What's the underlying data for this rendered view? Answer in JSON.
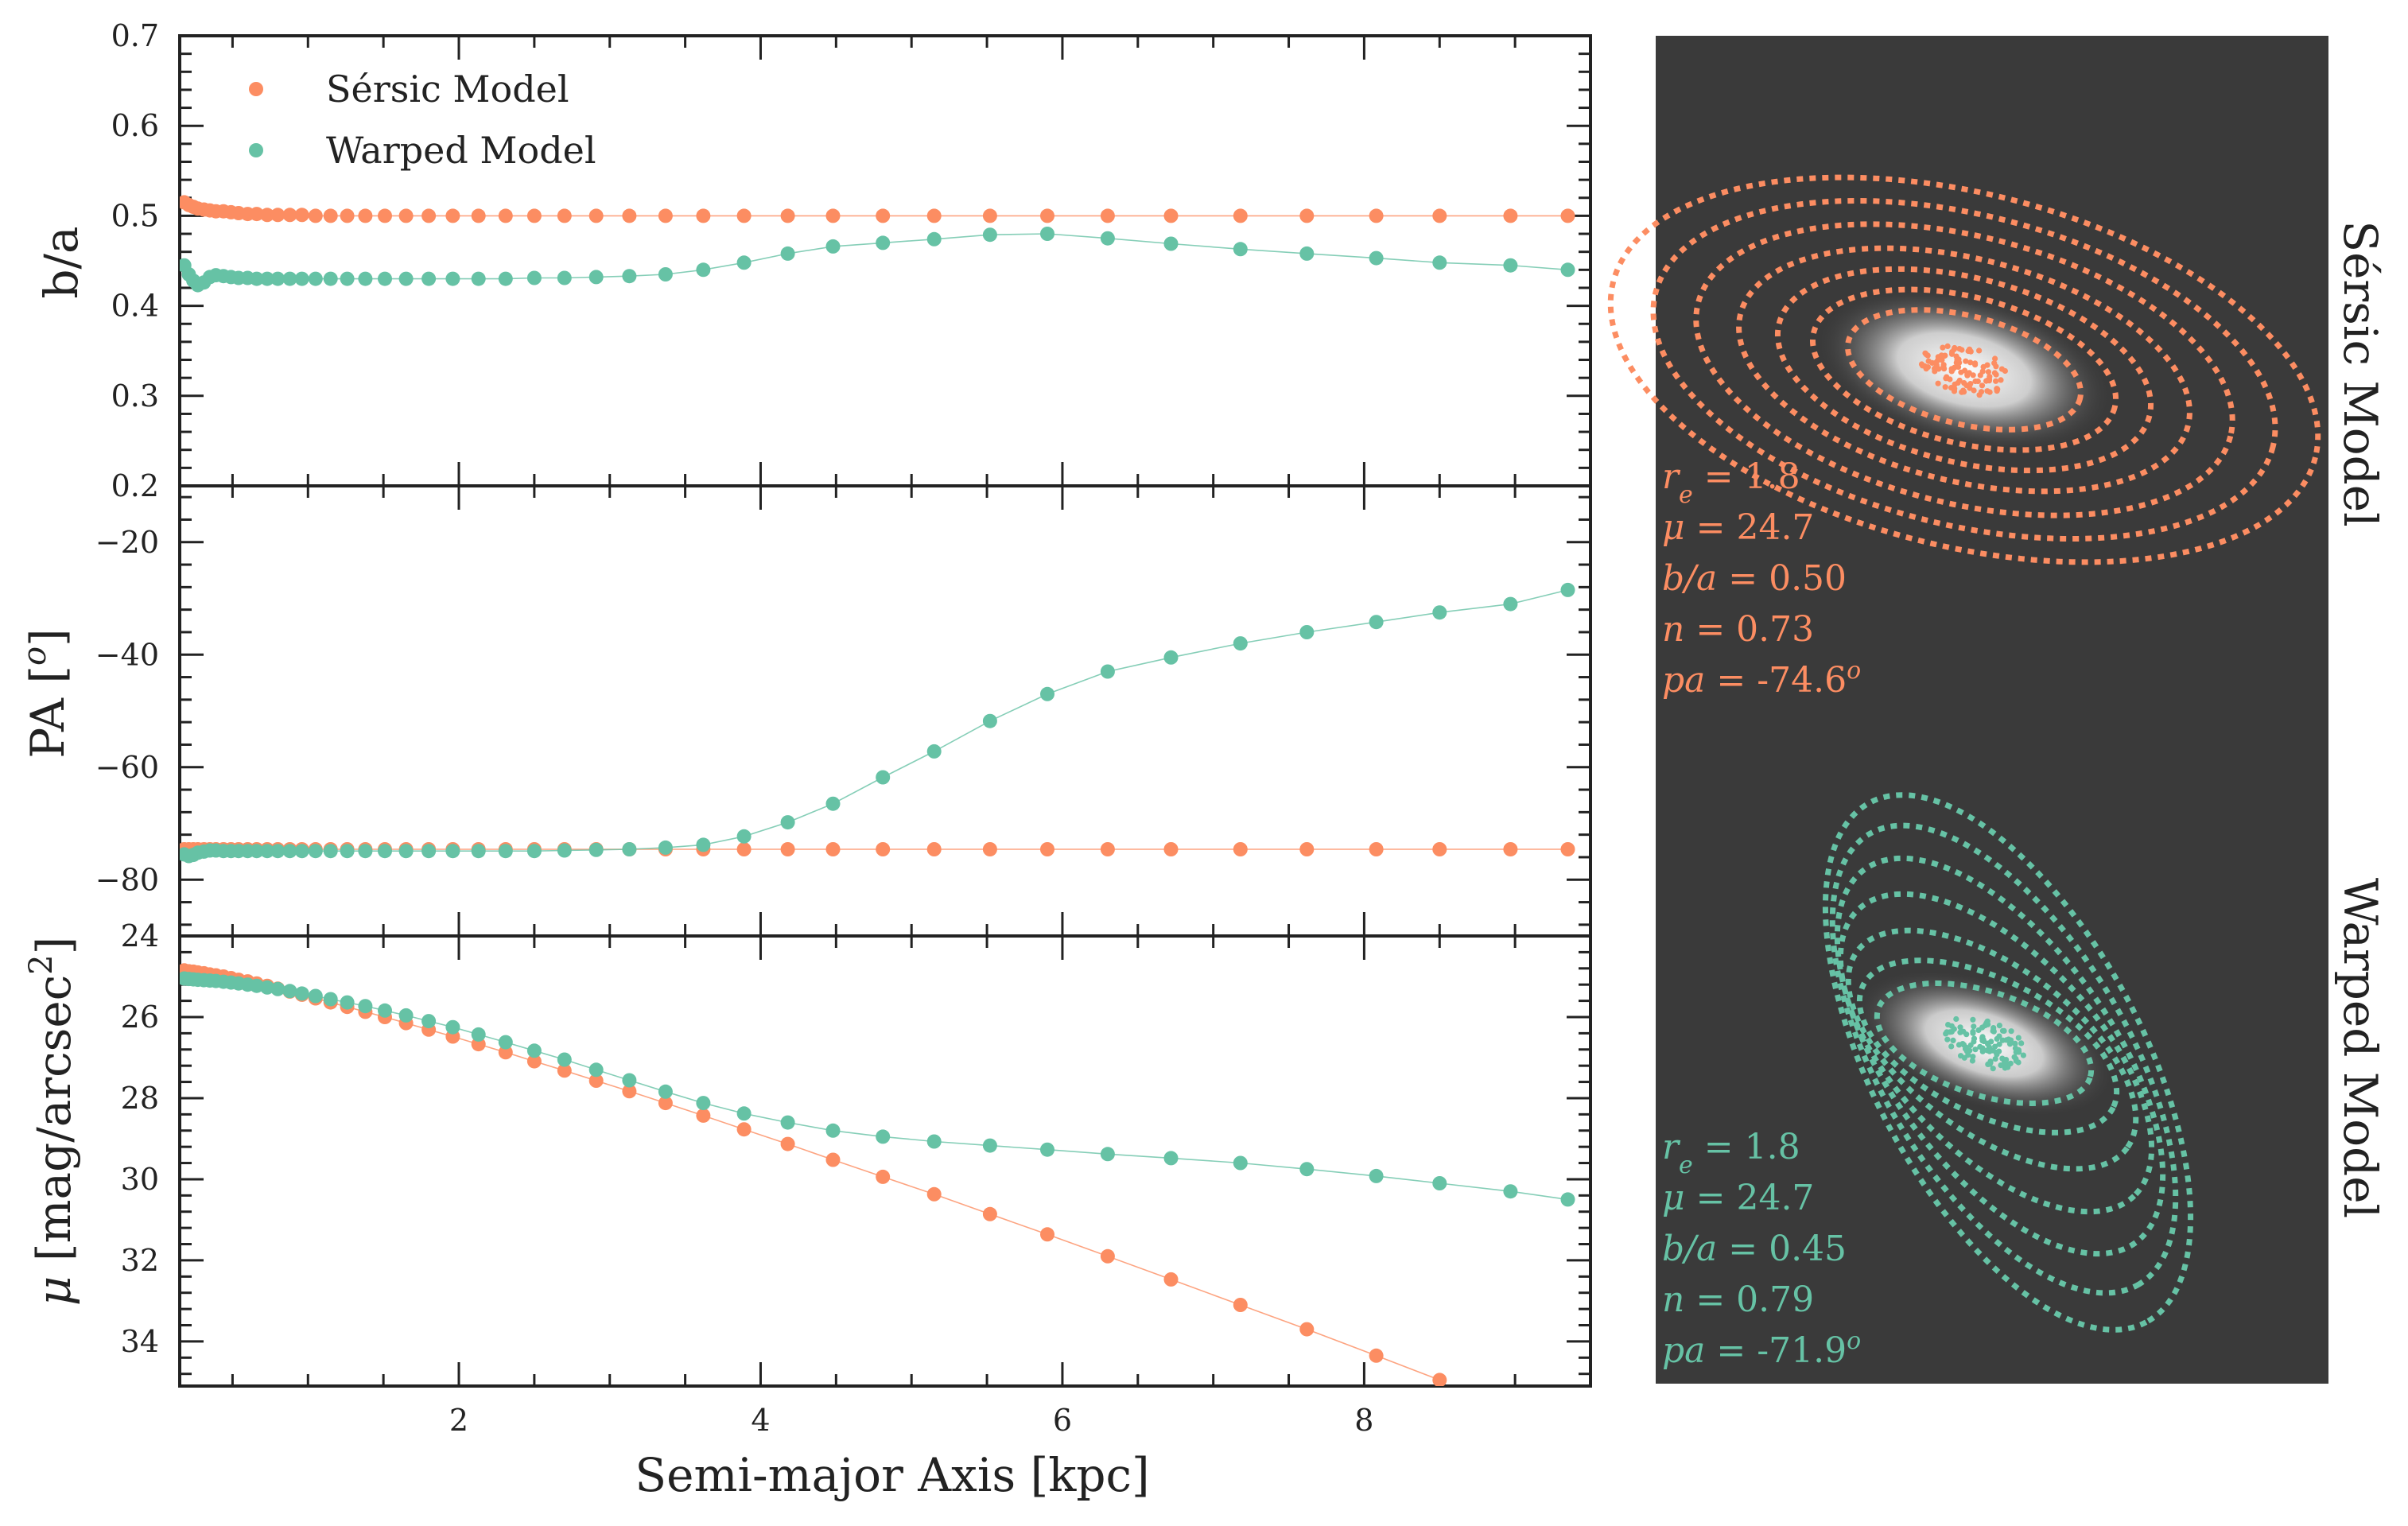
{
  "chart_data": [
    {
      "type": "scatter",
      "panel": "b/a profile",
      "ylabel": "b/a",
      "xlabel": "",
      "xlim": [
        0.15,
        9.5
      ],
      "ylim": [
        0.2,
        0.7
      ],
      "yticks": [
        0.2,
        0.3,
        0.4,
        0.5,
        0.6,
        0.7
      ],
      "ytick_labels": [
        "0.2",
        "0.3",
        "0.4",
        "0.5",
        "0.6",
        "0.7"
      ],
      "legend": {
        "position": "top-left",
        "entries": [
          "Sérsic Model",
          "Warped Model"
        ]
      },
      "series": [
        {
          "name": "Sérsic Model",
          "color": "#fc8d62",
          "x": [
            0.18,
            0.21,
            0.24,
            0.27,
            0.31,
            0.35,
            0.39,
            0.44,
            0.49,
            0.54,
            0.6,
            0.66,
            0.73,
            0.8,
            0.88,
            0.96,
            1.05,
            1.15,
            1.26,
            1.38,
            1.51,
            1.65,
            1.8,
            1.96,
            2.13,
            2.31,
            2.5,
            2.7,
            2.91,
            3.13,
            3.37,
            3.62,
            3.89,
            4.18,
            4.48,
            4.81,
            5.15,
            5.52,
            5.9,
            6.3,
            6.72,
            7.18,
            7.62,
            8.08,
            8.5,
            8.97,
            9.35
          ],
          "y": [
            0.515,
            0.512,
            0.51,
            0.508,
            0.507,
            0.506,
            0.505,
            0.505,
            0.504,
            0.503,
            0.502,
            0.502,
            0.501,
            0.501,
            0.501,
            0.501,
            0.5,
            0.5,
            0.5,
            0.5,
            0.5,
            0.5,
            0.5,
            0.5,
            0.5,
            0.5,
            0.5,
            0.5,
            0.5,
            0.5,
            0.5,
            0.5,
            0.5,
            0.5,
            0.5,
            0.5,
            0.5,
            0.5,
            0.5,
            0.5,
            0.5,
            0.5,
            0.5,
            0.5,
            0.5,
            0.5,
            0.5
          ]
        },
        {
          "name": "Warped Model",
          "color": "#66c2a5",
          "x": [
            0.18,
            0.21,
            0.24,
            0.27,
            0.31,
            0.35,
            0.39,
            0.44,
            0.49,
            0.54,
            0.6,
            0.66,
            0.73,
            0.8,
            0.88,
            0.96,
            1.05,
            1.15,
            1.26,
            1.38,
            1.51,
            1.65,
            1.8,
            1.96,
            2.13,
            2.31,
            2.5,
            2.7,
            2.91,
            3.13,
            3.37,
            3.62,
            3.89,
            4.18,
            4.48,
            4.81,
            5.15,
            5.52,
            5.9,
            6.3,
            6.72,
            7.18,
            7.62,
            8.08,
            8.5,
            8.97,
            9.35
          ],
          "y": [
            0.445,
            0.435,
            0.428,
            0.423,
            0.426,
            0.432,
            0.434,
            0.433,
            0.432,
            0.431,
            0.431,
            0.43,
            0.43,
            0.43,
            0.43,
            0.43,
            0.43,
            0.43,
            0.43,
            0.43,
            0.43,
            0.43,
            0.43,
            0.43,
            0.43,
            0.43,
            0.431,
            0.431,
            0.432,
            0.433,
            0.435,
            0.44,
            0.448,
            0.458,
            0.466,
            0.47,
            0.474,
            0.479,
            0.48,
            0.475,
            0.469,
            0.463,
            0.458,
            0.453,
            0.448,
            0.445,
            0.44
          ]
        }
      ]
    },
    {
      "type": "scatter",
      "panel": "PA profile",
      "ylabel": "PA [°]",
      "xlabel": "",
      "xlim": [
        0.15,
        9.5
      ],
      "ylim": [
        -90,
        -10
      ],
      "yticks": [
        -80,
        -60,
        -40,
        -20
      ],
      "ytick_labels": [
        "−80",
        "−60",
        "−40",
        "−20"
      ],
      "series": [
        {
          "name": "Sérsic Model",
          "color": "#fc8d62",
          "x": [
            0.18,
            0.21,
            0.24,
            0.27,
            0.31,
            0.35,
            0.39,
            0.44,
            0.49,
            0.54,
            0.6,
            0.66,
            0.73,
            0.8,
            0.88,
            0.96,
            1.05,
            1.15,
            1.26,
            1.38,
            1.51,
            1.65,
            1.8,
            1.96,
            2.13,
            2.31,
            2.5,
            2.7,
            2.91,
            3.13,
            3.37,
            3.62,
            3.89,
            4.18,
            4.48,
            4.81,
            5.15,
            5.52,
            5.9,
            6.3,
            6.72,
            7.18,
            7.62,
            8.08,
            8.5,
            8.97,
            9.35
          ],
          "y": [
            -74.6,
            -74.6,
            -74.6,
            -74.6,
            -74.6,
            -74.6,
            -74.6,
            -74.6,
            -74.6,
            -74.6,
            -74.6,
            -74.6,
            -74.6,
            -74.6,
            -74.6,
            -74.6,
            -74.6,
            -74.6,
            -74.6,
            -74.6,
            -74.6,
            -74.6,
            -74.6,
            -74.6,
            -74.6,
            -74.6,
            -74.6,
            -74.6,
            -74.6,
            -74.6,
            -74.6,
            -74.6,
            -74.6,
            -74.6,
            -74.6,
            -74.6,
            -74.6,
            -74.6,
            -74.6,
            -74.6,
            -74.6,
            -74.6,
            -74.6,
            -74.6,
            -74.6,
            -74.6,
            -74.6
          ]
        },
        {
          "name": "Warped Model",
          "color": "#66c2a5",
          "x": [
            0.18,
            0.21,
            0.24,
            0.27,
            0.31,
            0.35,
            0.39,
            0.44,
            0.49,
            0.54,
            0.6,
            0.66,
            0.73,
            0.8,
            0.88,
            0.96,
            1.05,
            1.15,
            1.26,
            1.38,
            1.51,
            1.65,
            1.8,
            1.96,
            2.13,
            2.31,
            2.5,
            2.7,
            2.91,
            3.13,
            3.37,
            3.62,
            3.89,
            4.18,
            4.48,
            4.81,
            5.15,
            5.52,
            5.9,
            6.3,
            6.72,
            7.18,
            7.62,
            8.08,
            8.5,
            8.97,
            9.35
          ],
          "y": [
            -75.5,
            -75.8,
            -75.6,
            -75.2,
            -75.0,
            -74.8,
            -74.8,
            -74.9,
            -74.9,
            -74.9,
            -74.9,
            -74.9,
            -74.9,
            -74.9,
            -74.9,
            -74.9,
            -74.9,
            -74.9,
            -74.9,
            -74.9,
            -74.9,
            -74.9,
            -74.9,
            -74.9,
            -74.9,
            -74.9,
            -74.9,
            -74.8,
            -74.7,
            -74.6,
            -74.3,
            -73.8,
            -72.3,
            -69.8,
            -66.5,
            -61.8,
            -57.2,
            -51.8,
            -47.0,
            -43.0,
            -40.5,
            -38.0,
            -36.0,
            -34.2,
            -32.5,
            -31.0,
            -28.5
          ]
        }
      ]
    },
    {
      "type": "scatter",
      "panel": "surface brightness profile",
      "ylabel": "μ [mag/arcsec²]",
      "xlabel": "Semi-major Axis [kpc]",
      "xlim": [
        0.15,
        9.5
      ],
      "ylim": [
        35.1,
        24.0
      ],
      "yticks": [
        24,
        26,
        28,
        30,
        32,
        34
      ],
      "ytick_labels": [
        "24",
        "26",
        "28",
        "30",
        "32",
        "34"
      ],
      "xticks": [
        2,
        4,
        6,
        8
      ],
      "xtick_labels": [
        "2",
        "4",
        "6",
        "8"
      ],
      "series": [
        {
          "name": "Sérsic Model",
          "color": "#fc8d62",
          "x": [
            0.18,
            0.21,
            0.24,
            0.27,
            0.31,
            0.35,
            0.39,
            0.44,
            0.49,
            0.54,
            0.6,
            0.66,
            0.73,
            0.8,
            0.88,
            0.96,
            1.05,
            1.15,
            1.26,
            1.38,
            1.51,
            1.65,
            1.8,
            1.96,
            2.13,
            2.31,
            2.5,
            2.7,
            2.91,
            3.13,
            3.37,
            3.62,
            3.89,
            4.18,
            4.48,
            4.81,
            5.15,
            5.52,
            5.9,
            6.3,
            6.72,
            7.18,
            7.62,
            8.08,
            8.5
          ],
          "y": [
            24.85,
            24.87,
            24.88,
            24.9,
            24.92,
            24.95,
            24.97,
            25.0,
            25.04,
            25.08,
            25.12,
            25.17,
            25.23,
            25.3,
            25.37,
            25.45,
            25.54,
            25.64,
            25.75,
            25.87,
            26.0,
            26.15,
            26.31,
            26.48,
            26.67,
            26.87,
            27.09,
            27.32,
            27.57,
            27.83,
            28.12,
            28.43,
            28.77,
            29.13,
            29.52,
            29.94,
            30.37,
            30.86,
            31.36,
            31.9,
            32.47,
            33.1,
            33.7,
            34.35,
            34.95
          ]
        },
        {
          "name": "Warped Model",
          "color": "#66c2a5",
          "x": [
            0.18,
            0.21,
            0.24,
            0.27,
            0.31,
            0.35,
            0.39,
            0.44,
            0.49,
            0.54,
            0.6,
            0.66,
            0.73,
            0.8,
            0.88,
            0.96,
            1.05,
            1.15,
            1.26,
            1.38,
            1.51,
            1.65,
            1.8,
            1.96,
            2.13,
            2.31,
            2.5,
            2.7,
            2.91,
            3.13,
            3.37,
            3.62,
            3.89,
            4.18,
            4.48,
            4.81,
            5.15,
            5.52,
            5.9,
            6.3,
            6.72,
            7.18,
            7.62,
            8.08,
            8.5,
            8.97,
            9.35
          ],
          "y": [
            25.05,
            25.06,
            25.07,
            25.08,
            25.09,
            25.1,
            25.11,
            25.13,
            25.15,
            25.17,
            25.2,
            25.23,
            25.27,
            25.31,
            25.36,
            25.42,
            25.48,
            25.56,
            25.64,
            25.73,
            25.84,
            25.96,
            26.1,
            26.25,
            26.43,
            26.62,
            26.83,
            27.05,
            27.3,
            27.56,
            27.84,
            28.12,
            28.38,
            28.6,
            28.8,
            28.95,
            29.07,
            29.17,
            29.27,
            29.38,
            29.48,
            29.6,
            29.75,
            29.92,
            30.1,
            30.3,
            30.5
          ]
        }
      ]
    }
  ],
  "images": [
    {
      "panel_label": "Sérsic Model",
      "color": "#fc8d62",
      "params": [
        {
          "sym": "r",
          "sub": "e",
          "value": "1.8"
        },
        {
          "sym": "μ",
          "sub": "",
          "value": "24.7"
        },
        {
          "sym": "b/a",
          "sub": "",
          "value": "0.50"
        },
        {
          "sym": "n",
          "sub": "",
          "value": "0.73"
        },
        {
          "sym": "pa",
          "sub": "",
          "value": "-74.6",
          "sup": "o"
        }
      ]
    },
    {
      "panel_label": "Warped Model",
      "color": "#66c2a5",
      "params": [
        {
          "sym": "r",
          "sub": "e",
          "value": "1.8"
        },
        {
          "sym": "μ",
          "sub": "",
          "value": "24.7"
        },
        {
          "sym": "b/a",
          "sub": "",
          "value": "0.45"
        },
        {
          "sym": "n",
          "sub": "",
          "value": "0.79"
        },
        {
          "sym": "pa",
          "sub": "",
          "value": "-71.9",
          "sup": "o"
        }
      ]
    }
  ],
  "colors": {
    "image_background": "#3a3a3a",
    "axes": "#222222",
    "galaxy_core": "#ffffff"
  }
}
